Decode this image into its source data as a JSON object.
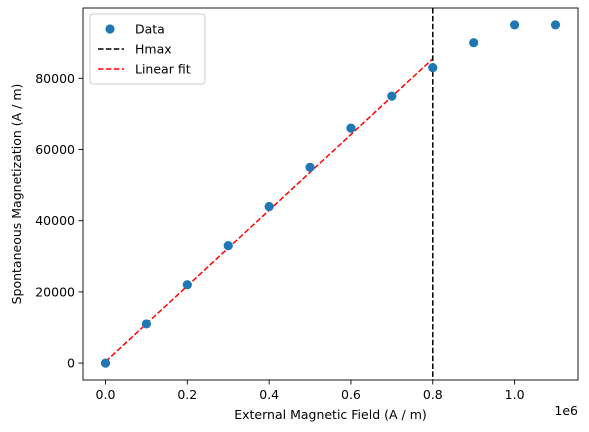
{
  "chart_data": {
    "type": "scatter",
    "title": "",
    "xlabel": "External Magnetic Field (A / m)",
    "ylabel": "Spontaneous Magnetization (A / m)",
    "x_offset_text": "1e6",
    "x_scale": 1000000,
    "xlim": [
      -55000,
      1155000
    ],
    "ylim": [
      -4750,
      99750
    ],
    "x_ticks": [
      0,
      200000,
      400000,
      600000,
      800000,
      1000000
    ],
    "x_tick_labels": [
      "0.0",
      "0.2",
      "0.4",
      "0.6",
      "0.8",
      "1.0"
    ],
    "y_ticks": [
      0,
      20000,
      40000,
      60000,
      80000
    ],
    "y_tick_labels": [
      "0",
      "20000",
      "40000",
      "60000",
      "80000"
    ],
    "grid": false,
    "legend_placement": "top-left",
    "series": [
      {
        "name": "Data",
        "kind": "scatter",
        "color": "#1f77b4",
        "x": [
          0,
          100000,
          200000,
          300000,
          400000,
          500000,
          600000,
          700000,
          800000,
          900000,
          1000000,
          1100000
        ],
        "y": [
          0,
          11000,
          22000,
          33000,
          44000,
          55000,
          66000,
          75000,
          83000,
          90000,
          95000,
          95000
        ]
      },
      {
        "name": "Hmax",
        "kind": "vline",
        "color": "#000000",
        "style": "dashed",
        "x": 800000
      },
      {
        "name": "Linear fit",
        "kind": "line",
        "color": "#ff0000",
        "style": "dashed",
        "x": [
          0,
          800000
        ],
        "y": [
          400,
          85500
        ]
      }
    ]
  }
}
